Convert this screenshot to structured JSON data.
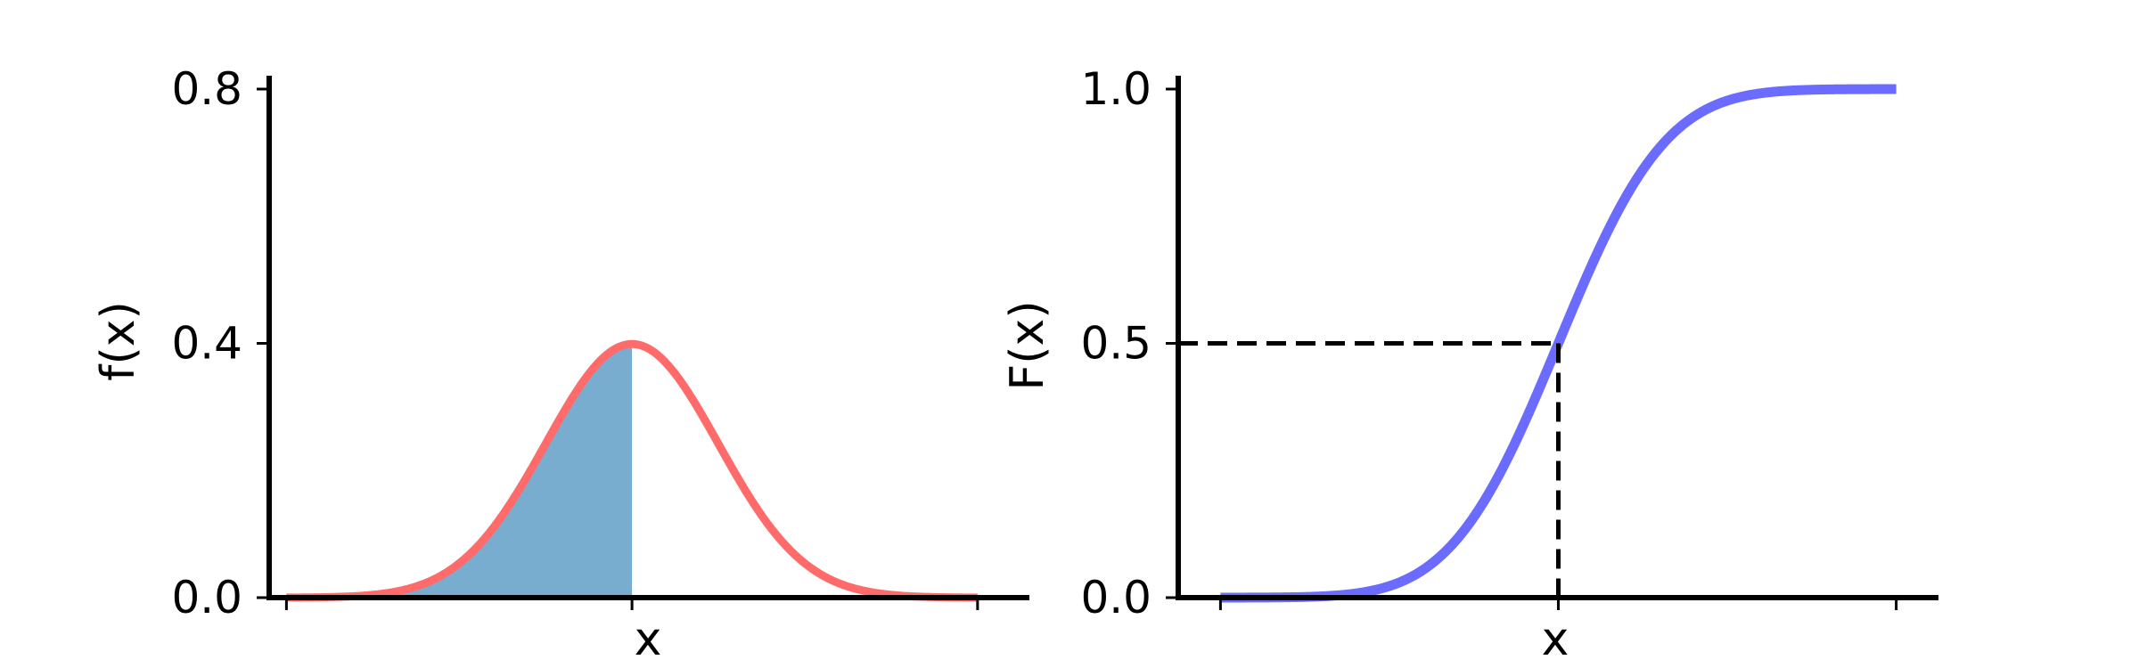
{
  "chart_data": [
    {
      "type": "area",
      "title": "",
      "xlabel": "x",
      "ylabel": "f(x)",
      "xlim": [
        -4.2,
        4.6
      ],
      "ylim": [
        0,
        0.8
      ],
      "xticks": [
        -4,
        0,
        4
      ],
      "xtick_labels": [
        "",
        "",
        ""
      ],
      "yticks": [
        0.0,
        0.4,
        0.8
      ],
      "ytick_labels": [
        "0.0",
        "0.4",
        "0.8"
      ],
      "grid": false,
      "curve": {
        "function": "standard normal pdf",
        "x_range": [
          -4,
          4
        ],
        "color": "#ff6b6b"
      },
      "shaded_region": {
        "x_range": [
          -4,
          0
        ],
        "color": "#78adcf"
      }
    },
    {
      "type": "line",
      "title": "",
      "xlabel": "x",
      "ylabel": "F(x)",
      "xlim": [
        -4.5,
        4.5
      ],
      "ylim": [
        0,
        1.0
      ],
      "xticks": [
        -4,
        0,
        4
      ],
      "xtick_labels": [
        "",
        "",
        ""
      ],
      "yticks": [
        0.0,
        0.5,
        1.0
      ],
      "ytick_labels": [
        "0.0",
        "0.5",
        "1.0"
      ],
      "grid": false,
      "curve": {
        "function": "standard normal cdf",
        "x_range": [
          -4,
          4
        ],
        "color": "#6b6bff"
      },
      "reference_point": {
        "x": 0,
        "y": 0.5
      }
    }
  ]
}
